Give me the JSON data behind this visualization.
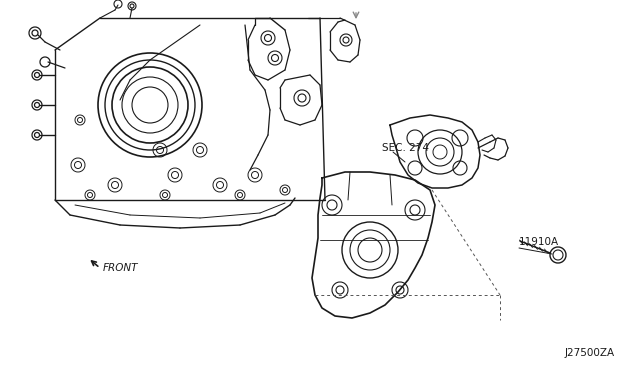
{
  "bg_color": "#ffffff",
  "line_color": "#1a1a1a",
  "gray_color": "#888888",
  "label_sec274": "SEC. 274",
  "label_part": "11910A",
  "label_front": "FRONT",
  "label_code": "J27500ZA",
  "fig_width": 6.4,
  "fig_height": 3.72,
  "dpi": 100
}
